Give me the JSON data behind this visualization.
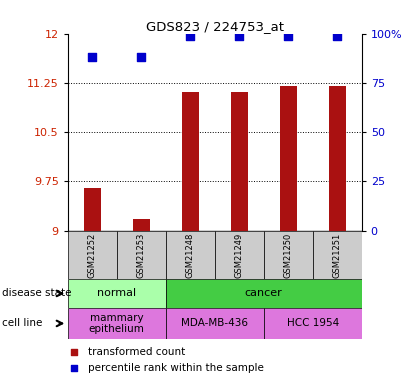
{
  "title": "GDS823 / 224753_at",
  "samples": [
    "GSM21252",
    "GSM21253",
    "GSM21248",
    "GSM21249",
    "GSM21250",
    "GSM21251"
  ],
  "bar_values": [
    9.65,
    9.18,
    11.12,
    11.12,
    11.2,
    11.2
  ],
  "percentile_values": [
    88,
    88,
    99,
    99,
    99,
    99
  ],
  "y_min": 9.0,
  "y_max": 12.0,
  "y_ticks": [
    9,
    9.75,
    10.5,
    11.25,
    12
  ],
  "y_right_ticks": [
    0,
    25,
    50,
    75,
    100
  ],
  "bar_color": "#aa1111",
  "dot_color": "#0000cc",
  "disease_state": [
    {
      "label": "normal",
      "span": [
        0,
        2
      ],
      "color": "#aaffaa"
    },
    {
      "label": "cancer",
      "span": [
        2,
        6
      ],
      "color": "#44cc44"
    }
  ],
  "cell_line": [
    {
      "label": "mammary\nepithelium",
      "span": [
        0,
        2
      ],
      "color": "#dd77dd"
    },
    {
      "label": "MDA-MB-436",
      "span": [
        2,
        4
      ],
      "color": "#dd77dd"
    },
    {
      "label": "HCC 1954",
      "span": [
        4,
        6
      ],
      "color": "#dd77dd"
    }
  ],
  "legend_items": [
    {
      "label": "transformed count",
      "color": "#aa1111"
    },
    {
      "label": "percentile rank within the sample",
      "color": "#0000cc"
    }
  ],
  "left_label_color": "#cc2200",
  "right_label_color": "#0000cc",
  "bar_width": 0.35,
  "dot_size": 28
}
